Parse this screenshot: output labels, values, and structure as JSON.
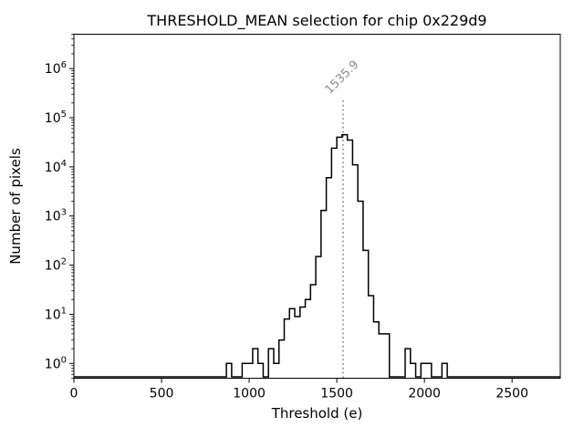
{
  "figure": {
    "background": "#ffffff",
    "text_color": "#000000"
  },
  "chart_data": {
    "type": "bar",
    "subtype": "step-histogram",
    "title": "THRESHOLD_MEAN selection for chip 0x229d9",
    "xlabel": "Threshold (e)",
    "ylabel": "Number of pixels",
    "xlim": [
      0,
      2775
    ],
    "ylim": [
      0.5,
      5000000
    ],
    "yscale": "log",
    "grid": false,
    "xticks": [
      0,
      500,
      1000,
      1500,
      2000,
      2500
    ],
    "ytick_exponents": [
      0,
      1,
      2,
      3,
      4,
      5,
      6
    ],
    "line_color": "#000000",
    "bin_start": 870,
    "bin_width": 30,
    "counts": [
      1,
      0,
      0,
      1,
      1,
      2,
      1,
      0,
      2,
      1,
      3,
      8,
      13,
      9,
      14,
      20,
      40,
      150,
      1300,
      6000,
      24000,
      40000,
      45000,
      35000,
      11000,
      2000,
      200,
      24,
      7,
      4,
      4,
      0,
      0,
      0,
      2,
      1,
      0,
      1,
      1,
      0,
      0,
      1
    ],
    "vline": {
      "x": 1535.9,
      "label": "1535.9",
      "color": "#7f7f7f",
      "style": "dotted"
    }
  }
}
